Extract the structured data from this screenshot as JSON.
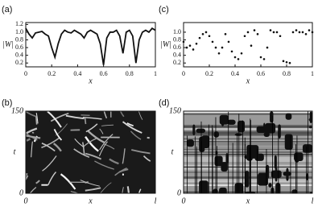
{
  "chart_data": [
    {
      "type": "line",
      "panel_label": "(a)",
      "xlabel": "x",
      "ylabel": "|W|",
      "color": "#111111",
      "x": [
        0,
        0.025,
        0.05,
        0.075,
        0.1,
        0.125,
        0.15,
        0.175,
        0.2,
        0.225,
        0.25,
        0.275,
        0.3,
        0.325,
        0.35,
        0.375,
        0.4,
        0.425,
        0.45,
        0.475,
        0.5,
        0.525,
        0.55,
        0.575,
        0.6,
        0.625,
        0.65,
        0.675,
        0.7,
        0.725,
        0.75,
        0.775,
        0.8,
        0.825,
        0.85,
        0.875,
        0.9,
        0.925,
        0.95,
        0.975,
        1
      ],
      "values": [
        1.1,
        0.95,
        0.85,
        0.98,
        1.0,
        1.02,
        0.95,
        0.9,
        0.6,
        0.35,
        0.7,
        0.95,
        1.05,
        1.0,
        0.98,
        1.05,
        1.0,
        0.95,
        0.85,
        1.0,
        1.05,
        1.0,
        0.95,
        0.7,
        0.15,
        0.85,
        1.0,
        1.0,
        1.05,
        0.9,
        0.45,
        1.0,
        1.05,
        0.9,
        0.2,
        0.8,
        1.0,
        1.05,
        1.0,
        1.1,
        1.05
      ],
      "xlim": [
        0,
        1
      ],
      "xticks": [
        0,
        0.2,
        0.4,
        0.6,
        0.8,
        1
      ],
      "ylim": [
        0.1,
        1.25
      ],
      "yticks": [
        0.2,
        0.4,
        0.6,
        0.8,
        {
          "value": 1,
          "label": "1.0"
        },
        1.2
      ]
    },
    {
      "type": "heatmap",
      "panel_label": "(b)",
      "xlabel": "x",
      "ylabel": "t",
      "style": "streaks",
      "xlim": [
        0,
        1
      ],
      "xticks": [
        0,
        {
          "value": 1,
          "label": "l"
        }
      ],
      "ylim": [
        0,
        150
      ],
      "yticks": [
        0,
        150
      ]
    },
    {
      "type": "scatter",
      "panel_label": "(c)",
      "xlabel": "x",
      "ylabel": "|W|",
      "color": "#111111",
      "x": [
        0,
        0.025,
        0.05,
        0.075,
        0.1,
        0.125,
        0.15,
        0.175,
        0.2,
        0.225,
        0.25,
        0.275,
        0.3,
        0.325,
        0.35,
        0.375,
        0.4,
        0.425,
        0.45,
        0.475,
        0.5,
        0.525,
        0.55,
        0.575,
        0.6,
        0.625,
        0.65,
        0.675,
        0.7,
        0.725,
        0.75,
        0.775,
        0.8,
        0.825,
        0.85,
        0.875,
        0.9,
        0.925,
        0.95,
        0.975,
        1
      ],
      "values": [
        0.75,
        0.6,
        0.65,
        0.55,
        0.7,
        0.85,
        0.95,
        1.0,
        0.9,
        0.75,
        0.6,
        0.45,
        0.6,
        0.95,
        0.75,
        0.5,
        0.35,
        0.3,
        0.45,
        0.9,
        1.0,
        0.65,
        1.05,
        0.95,
        0.35,
        0.3,
        0.6,
        1.05,
        1.0,
        1.0,
        0.9,
        0.25,
        0.22,
        0.2,
        1.0,
        1.05,
        1.0,
        1.0,
        0.95,
        1.05,
        1.0
      ],
      "xlim": [
        0,
        1
      ],
      "xticks": [
        0,
        0.2,
        0.4,
        0.6,
        0.8,
        1
      ],
      "ylim": [
        0.1,
        1.25
      ],
      "yticks": [
        0.2,
        0.4,
        0.6,
        0.8,
        {
          "value": 1,
          "label": "1.0"
        }
      ]
    },
    {
      "type": "heatmap",
      "panel_label": "(d)",
      "xlabel": "x",
      "ylabel": "t",
      "style": "bands",
      "xlim": [
        0,
        1
      ],
      "xticks": [
        0,
        {
          "value": 1,
          "label": "l"
        }
      ],
      "ylim": [
        0,
        150
      ],
      "yticks": [
        0,
        150
      ]
    }
  ]
}
